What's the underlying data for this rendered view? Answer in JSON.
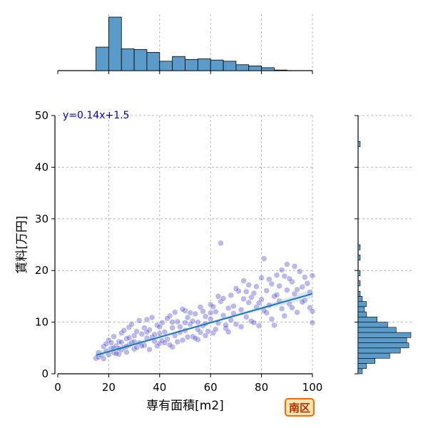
{
  "chart_data": {
    "type": "scatter",
    "xlabel": "専有面積[m2]",
    "ylabel": "賃料[万円]",
    "xlim": [
      0,
      100
    ],
    "ylim": [
      0,
      50
    ],
    "xticks": [
      0,
      20,
      40,
      60,
      80,
      100
    ],
    "yticks": [
      0,
      10,
      20,
      30,
      40,
      50
    ],
    "grid": true,
    "regression": {
      "equation": "y=0.14x+1.5",
      "slope": 0.14,
      "intercept": 1.5,
      "x_range": [
        15,
        100
      ]
    },
    "scatter_color": "#3a35c8",
    "line_color": "#1f77b4",
    "hist_color": "#5b9bc9",
    "equation_color": "#0000cc",
    "points": [
      [
        15,
        3.0
      ],
      [
        16,
        3.2
      ],
      [
        17,
        3.6
      ],
      [
        18,
        2.9
      ],
      [
        19,
        4.4
      ],
      [
        20,
        3.7
      ],
      [
        20,
        6.5
      ],
      [
        21,
        4.9
      ],
      [
        22,
        4.1
      ],
      [
        22,
        7.2
      ],
      [
        23,
        5.4
      ],
      [
        24,
        6.2
      ],
      [
        24,
        3.8
      ],
      [
        25,
        4.6
      ],
      [
        25,
        7.9
      ],
      [
        26,
        5.1
      ],
      [
        27,
        6.8
      ],
      [
        28,
        5.6
      ],
      [
        28,
        9.0
      ],
      [
        29,
        6.1
      ],
      [
        30,
        7.4
      ],
      [
        30,
        4.8
      ],
      [
        31,
        8.2
      ],
      [
        32,
        6.0
      ],
      [
        33,
        7.7
      ],
      [
        34,
        5.5
      ],
      [
        35,
        10.5
      ],
      [
        35,
        6.9
      ],
      [
        36,
        8.5
      ],
      [
        37,
        7.1
      ],
      [
        38,
        6.3
      ],
      [
        39,
        9.4
      ],
      [
        40,
        7.8
      ],
      [
        40,
        5.9
      ],
      [
        41,
        9.9
      ],
      [
        42,
        8.1
      ],
      [
        43,
        6.7
      ],
      [
        44,
        11.2
      ],
      [
        45,
        8.9
      ],
      [
        45,
        5.2
      ],
      [
        46,
        7.4
      ],
      [
        47,
        10.1
      ],
      [
        48,
        9.1
      ],
      [
        49,
        6.5
      ],
      [
        50,
        12.2
      ],
      [
        50,
        8.4
      ],
      [
        51,
        10.9
      ],
      [
        52,
        9.6
      ],
      [
        53,
        7.2
      ],
      [
        54,
        11.6
      ],
      [
        55,
        10.0
      ],
      [
        55,
        6.6
      ],
      [
        56,
        12.9
      ],
      [
        57,
        9.3
      ],
      [
        58,
        11.1
      ],
      [
        59,
        8.2
      ],
      [
        60,
        13.4
      ],
      [
        60,
        10.6
      ],
      [
        61,
        7.9
      ],
      [
        62,
        12.0
      ],
      [
        63,
        9.8
      ],
      [
        64,
        25.3
      ],
      [
        64,
        14.0
      ],
      [
        65,
        11.3
      ],
      [
        66,
        8.8
      ],
      [
        67,
        12.7
      ],
      [
        68,
        15.2
      ],
      [
        68,
        10.4
      ],
      [
        69,
        13.1
      ],
      [
        70,
        9.6
      ],
      [
        71,
        16.0
      ],
      [
        72,
        12.4
      ],
      [
        73,
        14.5
      ],
      [
        74,
        11.0
      ],
      [
        75,
        17.2
      ],
      [
        75,
        13.8
      ],
      [
        76,
        10.2
      ],
      [
        77,
        15.6
      ],
      [
        78,
        12.9
      ],
      [
        79,
        9.3
      ],
      [
        80,
        18.6
      ],
      [
        80,
        14.4
      ],
      [
        81,
        22.3
      ],
      [
        82,
        16.1
      ],
      [
        82,
        11.8
      ],
      [
        83,
        13.3
      ],
      [
        84,
        17.4
      ],
      [
        85,
        15.0
      ],
      [
        85,
        9.4
      ],
      [
        86,
        19.1
      ],
      [
        87,
        14.1
      ],
      [
        88,
        12.6
      ],
      [
        89,
        18.9
      ],
      [
        90,
        21.2
      ],
      [
        90,
        16.2
      ],
      [
        91,
        13.5
      ],
      [
        92,
        17.8
      ],
      [
        93,
        15.5
      ],
      [
        94,
        11.9
      ],
      [
        95,
        19.8
      ],
      [
        96,
        16.8
      ],
      [
        97,
        14.2
      ],
      [
        98,
        17.5
      ],
      [
        99,
        12.8
      ],
      [
        100,
        19.0
      ],
      [
        100,
        12.1
      ],
      [
        100,
        9.9
      ],
      [
        18,
        5.3
      ],
      [
        21,
        6.0
      ],
      [
        23,
        3.9
      ],
      [
        26,
        8.4
      ],
      [
        27,
        4.2
      ],
      [
        29,
        9.6
      ],
      [
        31,
        5.1
      ],
      [
        32,
        10.3
      ],
      [
        34,
        8.9
      ],
      [
        36,
        4.7
      ],
      [
        37,
        10.9
      ],
      [
        39,
        5.4
      ],
      [
        41,
        6.4
      ],
      [
        43,
        10.7
      ],
      [
        44,
        5.6
      ],
      [
        46,
        11.9
      ],
      [
        47,
        6.2
      ],
      [
        49,
        12.5
      ],
      [
        51,
        7.1
      ],
      [
        52,
        11.8
      ],
      [
        54,
        6.9
      ],
      [
        56,
        8.0
      ],
      [
        57,
        12.1
      ],
      [
        58,
        7.4
      ],
      [
        61,
        13.0
      ],
      [
        62,
        8.6
      ],
      [
        63,
        15.0
      ],
      [
        65,
        14.6
      ],
      [
        66,
        9.4
      ],
      [
        67,
        8.1
      ],
      [
        69,
        11.7
      ],
      [
        70,
        16.5
      ],
      [
        72,
        9.1
      ],
      [
        73,
        18.0
      ],
      [
        74,
        15.9
      ],
      [
        76,
        14.8
      ],
      [
        77,
        9.9
      ],
      [
        78,
        16.9
      ],
      [
        79,
        13.7
      ],
      [
        81,
        12.2
      ],
      [
        83,
        18.3
      ],
      [
        84,
        10.6
      ],
      [
        86,
        15.3
      ],
      [
        87,
        17.0
      ],
      [
        88,
        20.1
      ],
      [
        89,
        11.2
      ],
      [
        91,
        18.4
      ],
      [
        92,
        12.8
      ],
      [
        93,
        20.8
      ],
      [
        94,
        16.3
      ],
      [
        96,
        13.9
      ],
      [
        97,
        18.7
      ],
      [
        99,
        15.8
      ],
      [
        16,
        4.1
      ],
      [
        19,
        5.8
      ],
      [
        22,
        5.0
      ],
      [
        24,
        4.9
      ],
      [
        25,
        6.1
      ],
      [
        27,
        5.3
      ],
      [
        28,
        7.0
      ],
      [
        30,
        6.2
      ],
      [
        33,
        5.4
      ],
      [
        35,
        8.1
      ],
      [
        38,
        7.6
      ],
      [
        40,
        9.1
      ],
      [
        42,
        6.0
      ],
      [
        45,
        10.0
      ],
      [
        48,
        8.0
      ],
      [
        50,
        9.9
      ],
      [
        53,
        10.2
      ],
      [
        55,
        8.6
      ],
      [
        58,
        9.7
      ],
      [
        60,
        11.8
      ]
    ],
    "hist_x": {
      "bin_start": 15,
      "bin_width": 5,
      "counts": [
        40,
        91,
        37,
        36,
        31,
        16,
        24,
        19,
        20,
        18,
        16,
        10,
        8,
        5,
        1
      ]
    },
    "hist_y": {
      "bin_start": 0,
      "bin_width": 1,
      "counts": [
        2,
        4,
        8,
        15,
        20,
        24,
        23,
        25,
        18,
        14,
        9,
        4,
        3,
        4,
        2,
        1,
        0,
        1,
        0,
        1,
        0,
        0,
        1,
        0,
        1,
        0,
        0,
        0,
        0,
        0,
        0,
        0,
        0,
        0,
        0,
        0,
        0,
        0,
        0,
        0,
        0,
        0,
        0,
        0,
        1,
        0,
        0,
        0,
        0,
        0
      ]
    },
    "badge_label": "南区"
  }
}
